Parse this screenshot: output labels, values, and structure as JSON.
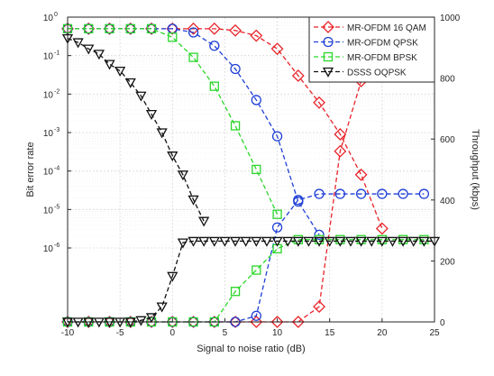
{
  "chart_data": {
    "type": "line",
    "xlabel": "Signal to noise ratio (dB)",
    "ylabel_left": "Bit error rate",
    "ylabel_right": "Throughput (kbps)",
    "x_axis": {
      "range": [
        -10,
        25
      ],
      "ticks": [
        "-10",
        "-5",
        "0",
        "5",
        "10",
        "15",
        "20",
        "25"
      ],
      "tick_values": [
        -10,
        -5,
        0,
        5,
        10,
        15,
        20,
        25
      ]
    },
    "y_left": {
      "scale": "log",
      "range_exp": [
        -6,
        0
      ],
      "ticks": [
        {
          "base": "10",
          "exp": "0"
        },
        {
          "base": "10",
          "exp": "-1"
        },
        {
          "base": "10",
          "exp": "-2"
        },
        {
          "base": "10",
          "exp": "-3"
        },
        {
          "base": "10",
          "exp": "-4"
        },
        {
          "base": "10",
          "exp": "-5"
        },
        {
          "base": "10",
          "exp": "-6"
        }
      ],
      "tick_exps": [
        0,
        -1,
        -2,
        -3,
        -4,
        -5,
        -6
      ]
    },
    "y_right": {
      "scale": "linear",
      "range": [
        0,
        1000
      ],
      "ticks": [
        "0",
        "200",
        "400",
        "600",
        "800",
        "1000"
      ],
      "tick_values": [
        0,
        200,
        400,
        600,
        800,
        1000
      ]
    },
    "grid": true,
    "legend_position": "top-right",
    "series": [
      {
        "name": "MR-OFDM 16 QAM",
        "color": "#e8232a",
        "marker": "diamond",
        "ber": {
          "x": [
            -10,
            -8,
            -6,
            -4,
            -2,
            0,
            2,
            4,
            6,
            8,
            10,
            12,
            14,
            16,
            18,
            20
          ],
          "y": [
            0.5,
            0.5,
            0.5,
            0.5,
            0.5,
            0.5,
            0.5,
            0.5,
            0.45,
            0.33,
            0.15,
            0.03,
            0.006,
            0.0009,
            8e-05,
            3.2e-06
          ]
        },
        "throughput": {
          "x": [
            -10,
            -8,
            -6,
            -4,
            -2,
            0,
            2,
            4,
            6,
            8,
            10,
            12,
            14,
            16,
            18,
            20,
            22,
            24
          ],
          "y": [
            0,
            0,
            0,
            0,
            0,
            0,
            0,
            0,
            0,
            0,
            0,
            0,
            50,
            560,
            790,
            810,
            810,
            810
          ]
        }
      },
      {
        "name": "MR-OFDM QPSK",
        "color": "#1f3fd6",
        "marker": "circle",
        "ber": {
          "x": [
            -10,
            -8,
            -6,
            -4,
            -2,
            0,
            2,
            4,
            6,
            8,
            10,
            12,
            14
          ],
          "y": [
            0.5,
            0.5,
            0.5,
            0.5,
            0.5,
            0.5,
            0.4,
            0.18,
            0.045,
            0.007,
            0.0008,
            1.6e-05,
            2.2e-06
          ]
        },
        "throughput": {
          "x": [
            -10,
            -8,
            -6,
            -4,
            -2,
            0,
            2,
            4,
            6,
            8,
            10,
            12,
            14,
            16,
            18,
            20,
            22,
            24
          ],
          "y": [
            0,
            0,
            0,
            0,
            0,
            0,
            0,
            0,
            0,
            20,
            310,
            400,
            420,
            420,
            420,
            420,
            420,
            420
          ]
        }
      },
      {
        "name": "MR-OFDM BPSK",
        "color": "#2bd62b",
        "marker": "square",
        "ber": {
          "x": [
            -10,
            -8,
            -6,
            -4,
            -2,
            0,
            2,
            4,
            6,
            8,
            10
          ],
          "y": [
            0.5,
            0.5,
            0.5,
            0.5,
            0.5,
            0.3,
            0.09,
            0.016,
            0.0015,
            0.00011,
            7.5e-06
          ]
        },
        "throughput": {
          "x": [
            -10,
            -8,
            -6,
            -4,
            -2,
            0,
            2,
            4,
            6,
            8,
            10,
            12,
            14,
            16,
            18,
            20,
            22,
            24
          ],
          "y": [
            0,
            0,
            0,
            0,
            0,
            0,
            0,
            0,
            100,
            170,
            240,
            270,
            270,
            270,
            270,
            270,
            270,
            270
          ]
        }
      },
      {
        "name": "DSSS OQPSK",
        "color": "#111111",
        "marker": "triangle-down",
        "ber": {
          "x": [
            -10,
            -9,
            -8,
            -7,
            -6,
            -5,
            -4,
            -3,
            -2,
            -1,
            0,
            1,
            2,
            3
          ],
          "y": [
            0.28,
            0.22,
            0.15,
            0.11,
            0.06,
            0.04,
            0.02,
            0.009,
            0.003,
            0.001,
            0.00025,
            8e-05,
            1.8e-05,
            5e-06
          ]
        },
        "throughput": {
          "x": [
            -10,
            -9,
            -8,
            -7,
            -6,
            -5,
            -4,
            -3,
            -2,
            -1,
            0,
            1,
            2,
            3,
            4,
            5,
            6,
            7,
            8,
            9,
            10,
            11,
            12,
            13,
            14,
            15,
            16,
            17,
            18,
            19,
            20,
            21,
            22,
            23,
            24,
            25
          ],
          "y": [
            0,
            0,
            0,
            0,
            0,
            0,
            0,
            5,
            15,
            50,
            150,
            260,
            265,
            265,
            265,
            265,
            265,
            265,
            265,
            265,
            265,
            265,
            265,
            265,
            265,
            265,
            265,
            265,
            265,
            265,
            265,
            265,
            265,
            265,
            265,
            265
          ]
        }
      }
    ]
  }
}
